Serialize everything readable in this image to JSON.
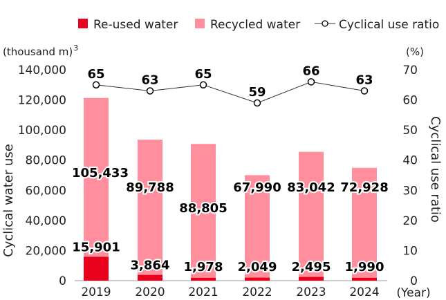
{
  "chart_data": {
    "type": "bar",
    "categories": [
      "2019",
      "2020",
      "2021",
      "2022",
      "2023",
      "2024"
    ],
    "series": [
      {
        "name": "Re-used water",
        "kind": "bar",
        "axis": "left",
        "color": "#e8001c",
        "values": [
          15901,
          3864,
          1978,
          2049,
          2495,
          1990
        ]
      },
      {
        "name": "Recycled water",
        "kind": "bar",
        "axis": "left",
        "color": "#ff8f9c",
        "values": [
          105433,
          89788,
          88805,
          67990,
          83042,
          72928
        ]
      },
      {
        "name": "Cyclical use ratio",
        "kind": "line",
        "axis": "right",
        "color": "#000000",
        "values": [
          65,
          63,
          65,
          59,
          66,
          63
        ]
      }
    ],
    "stacked": true,
    "left_axis": {
      "label": "Cyclical water use",
      "unit": "(thousand m3)",
      "ylim": [
        0,
        140000
      ],
      "ticks": [
        "0",
        "20,000",
        "40,000",
        "60,000",
        "80,000",
        "100,000",
        "120,000",
        "140,000"
      ]
    },
    "right_axis": {
      "label": "Cyclical use ratio",
      "unit": "(%)",
      "ylim": [
        0,
        70
      ],
      "ticks": [
        "0",
        "10",
        "20",
        "30",
        "40",
        "50",
        "60",
        "70"
      ]
    },
    "x_unit": "(Year)",
    "legend": "top-right",
    "grid": false
  }
}
